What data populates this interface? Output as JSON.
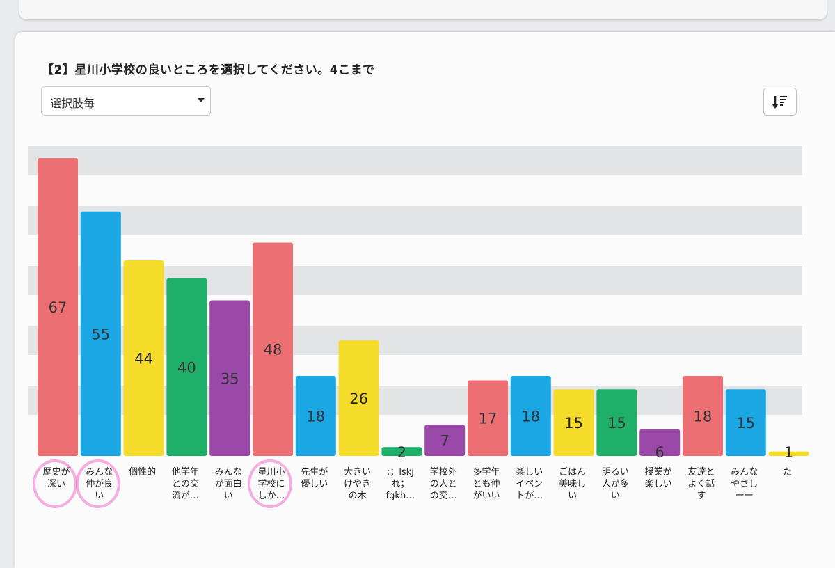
{
  "question": "【2】星川小学校の良いところを選択してください。4こまで",
  "filter": {
    "selected": "選択肢毎"
  },
  "sort_button": {
    "icon": "sort-descending-icon"
  },
  "chart_data": {
    "type": "bar",
    "title": "",
    "xlabel": "",
    "ylabel": "",
    "ylim": [
      0,
      70
    ],
    "categories": [
      [
        "歴史が",
        "深い"
      ],
      [
        "みんな",
        "仲が良",
        "い"
      ],
      [
        "個性的"
      ],
      [
        "他学年",
        "との交",
        "流が…"
      ],
      [
        "みんな",
        "が面白",
        "い"
      ],
      [
        "星川小",
        "学校に",
        "しか…"
      ],
      [
        "先生が",
        "優しい"
      ],
      [
        "大きい",
        "けやき",
        "の木"
      ],
      [
        ":；lskj",
        "れ；",
        "fgkh…"
      ],
      [
        "学校外",
        "の人と",
        "の交…"
      ],
      [
        "多学年",
        "とも仲",
        "がいい"
      ],
      [
        "楽しい",
        "イベン",
        "トが…"
      ],
      [
        "ごはん",
        "美味し",
        "い"
      ],
      [
        "明るい",
        "人が多",
        "い"
      ],
      [
        "授業が",
        "楽しい"
      ],
      [
        "友達と",
        "よく話",
        "す"
      ],
      [
        "みんな",
        "やさし",
        "ーー"
      ],
      [
        "た"
      ]
    ],
    "values": [
      67,
      55,
      44,
      40,
      35,
      48,
      18,
      26,
      2,
      7,
      17,
      18,
      15,
      15,
      6,
      18,
      15,
      1
    ],
    "colors": [
      "#ec6f73",
      "#1aa7e3",
      "#f5db2a",
      "#1eb069",
      "#9b49a8",
      "#ec6f73",
      "#1aa7e3",
      "#f5db2a",
      "#1eb069",
      "#9b49a8",
      "#ec6f73",
      "#1aa7e3",
      "#f5db2a",
      "#1eb069",
      "#9b49a8",
      "#ec6f73",
      "#1aa7e3",
      "#f5db2a"
    ],
    "highlighted_categories": [
      0,
      1,
      5
    ],
    "highlight_color": "#f06cc6",
    "grid": true
  }
}
